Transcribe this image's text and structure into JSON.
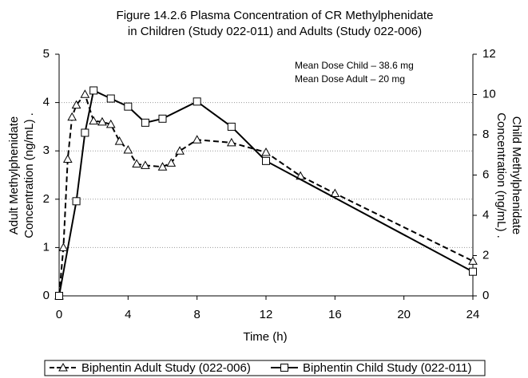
{
  "chart_data": {
    "type": "line",
    "title": [
      "Figure 14.2.6 Plasma Concentration of CR Methylphenidate",
      "in Children (Study 022-011) and Adults (Study 022-006)"
    ],
    "xlabel": "Time (h)",
    "ylabel": [
      "Adult Methylphenidate",
      "Concentration (ng/mL) ."
    ],
    "y2label": [
      "Child Methylphenidate",
      "Concentration (ng/mL) ."
    ],
    "annotations": [
      "Mean Dose Child – 38.6 mg",
      "Mean Dose Adult – 20 mg"
    ],
    "xlim": [
      0,
      24
    ],
    "xticks": [
      0,
      4,
      8,
      12,
      16,
      20,
      24
    ],
    "ylim": [
      0,
      5
    ],
    "yticks": [
      0,
      1,
      2,
      3,
      4,
      5
    ],
    "y2lim": [
      0,
      12
    ],
    "y2ticks": [
      0,
      2,
      4,
      6,
      8,
      10,
      12
    ],
    "grid": true,
    "series": [
      {
        "name": "Biphentin Adult Study (022-006)",
        "color": "#000000",
        "marker": "triangle",
        "dash": true,
        "x": [
          0,
          0.25,
          0.5,
          0.75,
          1,
          1.5,
          2,
          2.5,
          3,
          3.5,
          4,
          4.5,
          5,
          6,
          6.5,
          7,
          8,
          10,
          12,
          14,
          16,
          24
        ],
        "values": [
          0,
          1.0,
          2.83,
          3.7,
          3.95,
          4.17,
          3.62,
          3.6,
          3.55,
          3.2,
          3.02,
          2.73,
          2.7,
          2.67,
          2.75,
          3.0,
          3.23,
          3.17,
          2.97,
          2.48,
          2.12,
          0.72
        ]
      },
      {
        "name": "Biphentin Child Study (022-011)",
        "color": "#000000",
        "marker": "square",
        "dash": false,
        "axis": "y2",
        "x": [
          0,
          1,
          1.5,
          2,
          3,
          4,
          5,
          6,
          8,
          10,
          12,
          24
        ],
        "values": [
          0,
          4.7,
          8.1,
          10.2,
          9.8,
          9.4,
          8.6,
          8.8,
          9.65,
          8.4,
          6.7,
          1.2
        ]
      }
    ]
  }
}
